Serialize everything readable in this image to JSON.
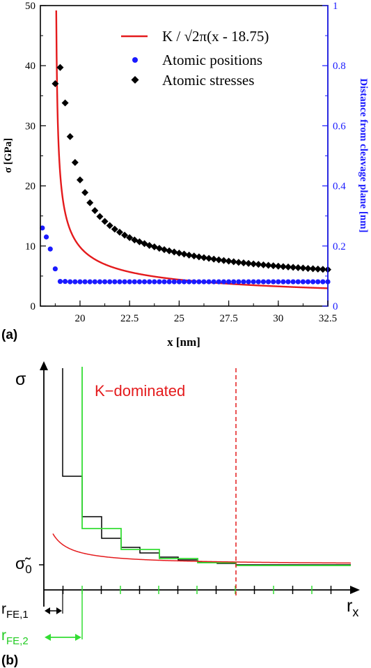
{
  "panel_a": {
    "label": "(a)",
    "chart_data": {
      "type": "scatter",
      "xlabel": "x [nm]",
      "ylabel": "σ [GPa]",
      "y2label": "Distance from cleavage plane [nm]",
      "xlim": [
        18.0,
        32.5
      ],
      "ylim": [
        0,
        50
      ],
      "y2lim": [
        0,
        1
      ],
      "x_ticks": [
        "20",
        "22.5",
        "25",
        "27.5",
        "30",
        "32.5"
      ],
      "y_ticks": [
        "0",
        "10",
        "20",
        "30",
        "40",
        "50"
      ],
      "y2_ticks": [
        "0",
        "0.2",
        "0.4",
        "0.6",
        "0.8",
        "1"
      ],
      "legend_position": "top-right",
      "colors": {
        "fit": "#e41a1c",
        "positions": "#1a1aff",
        "stresses": "#000000",
        "right_axis": "#1a1aff"
      },
      "series": [
        {
          "name": "K / √2π(x - 18.75)",
          "kind": "line",
          "axis": "left",
          "fit_offset": 18.75,
          "fit_coefficient": 11.0
        },
        {
          "name": "Atomic positions",
          "kind": "circle",
          "axis": "right",
          "x": [
            18.1,
            18.3,
            18.5,
            18.75,
            19.0,
            19.25,
            19.5,
            19.75,
            20.0,
            20.25,
            20.5,
            20.75,
            21.0,
            21.25,
            21.5,
            21.75,
            22.0,
            22.25,
            22.5,
            22.75,
            23.0,
            23.25,
            23.5,
            23.75,
            24.0,
            24.25,
            24.5,
            24.75,
            25.0,
            25.25,
            25.5,
            25.75,
            26.0,
            26.25,
            26.5,
            26.75,
            27.0,
            27.25,
            27.5,
            27.75,
            28.0,
            28.25,
            28.5,
            28.75,
            29.0,
            29.25,
            29.5,
            29.75,
            30.0,
            30.25,
            30.5,
            30.75,
            31.0,
            31.25,
            31.5,
            31.75,
            32.0,
            32.25,
            32.5
          ],
          "y": [
            0.26,
            0.23,
            0.19,
            0.124,
            0.082,
            0.082,
            0.081,
            0.081,
            0.081,
            0.081,
            0.081,
            0.081,
            0.081,
            0.081,
            0.081,
            0.081,
            0.081,
            0.081,
            0.081,
            0.081,
            0.081,
            0.081,
            0.081,
            0.081,
            0.081,
            0.081,
            0.081,
            0.081,
            0.081,
            0.081,
            0.081,
            0.081,
            0.081,
            0.081,
            0.081,
            0.081,
            0.081,
            0.081,
            0.081,
            0.081,
            0.081,
            0.081,
            0.081,
            0.081,
            0.081,
            0.081,
            0.081,
            0.081,
            0.081,
            0.081,
            0.081,
            0.081,
            0.081,
            0.081,
            0.081,
            0.081,
            0.081,
            0.081,
            0.081
          ]
        },
        {
          "name": "Atomic stresses",
          "kind": "diamond",
          "axis": "left",
          "x": [
            18.75,
            19.0,
            19.25,
            19.5,
            19.75,
            20.0,
            20.25,
            20.5,
            20.75,
            21.0,
            21.25,
            21.5,
            21.75,
            22.0,
            22.25,
            22.5,
            22.75,
            23.0,
            23.25,
            23.5,
            23.75,
            24.0,
            24.25,
            24.5,
            24.75,
            25.0,
            25.25,
            25.5,
            25.75,
            26.0,
            26.25,
            26.5,
            26.75,
            27.0,
            27.25,
            27.5,
            27.75,
            28.0,
            28.25,
            28.5,
            28.75,
            29.0,
            29.25,
            29.5,
            29.75,
            30.0,
            30.25,
            30.5,
            30.75,
            31.0,
            31.25,
            31.5,
            31.75,
            32.0,
            32.25,
            32.5
          ],
          "y": [
            37.0,
            39.7,
            33.8,
            28.2,
            23.9,
            21.0,
            18.9,
            17.2,
            15.9,
            14.9,
            14.1,
            13.4,
            12.8,
            12.3,
            11.8,
            11.4,
            11.0,
            10.7,
            10.4,
            10.1,
            9.86,
            9.62,
            9.4,
            9.2,
            9.0,
            8.82,
            8.65,
            8.49,
            8.34,
            8.2,
            8.06,
            7.94,
            7.81,
            7.7,
            7.59,
            7.48,
            7.38,
            7.28,
            7.19,
            7.1,
            7.02,
            6.94,
            6.86,
            6.78,
            6.71,
            6.64,
            6.57,
            6.51,
            6.45,
            6.39,
            6.33,
            6.27,
            6.22,
            6.17,
            6.12,
            6.07
          ]
        }
      ]
    }
  },
  "panel_b": {
    "label": "(b)",
    "sigma_label": "σ",
    "sigma0_label": "σ̃0",
    "sigma0_main": "σ̃",
    "sigma0_sub": "0",
    "rx_main": "r",
    "rx_sub": "x",
    "rfe1_main": "r",
    "rfe1_sub": "FE,1",
    "rfe2_main": "r",
    "rfe2_sub": "FE,2",
    "region_label": "K−dominated",
    "colors": {
      "curve": "#e41a1c",
      "fe1": "#000000",
      "fe2": "#33dd33",
      "label_red": "#e41a1c",
      "label_green": "#22cc22"
    }
  }
}
